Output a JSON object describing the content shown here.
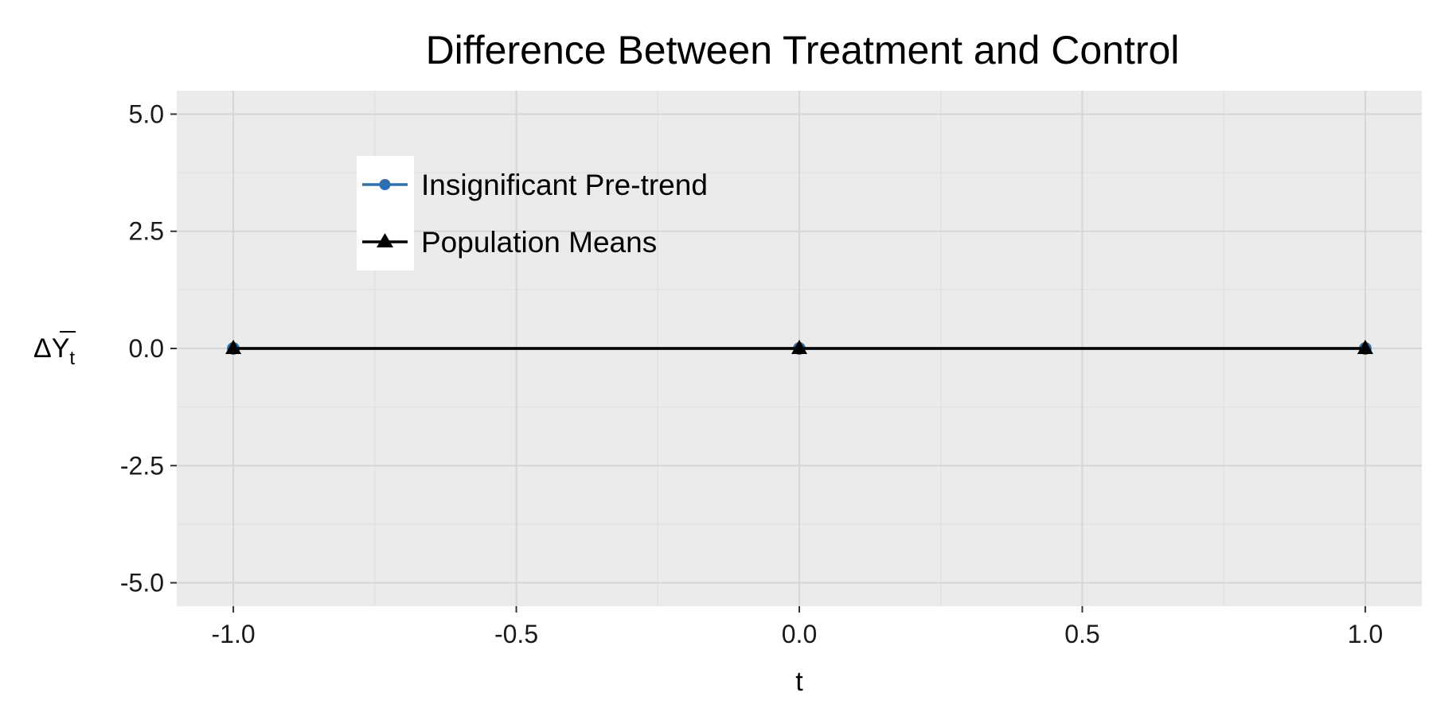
{
  "chart_data": {
    "type": "line",
    "title": "Difference Between Treatment and Control",
    "xlabel": "t",
    "ylabel": "ΔȲt",
    "ylabel_parts": {
      "main": "ΔY",
      "sub": "t"
    },
    "x": [
      -1.0,
      0.0,
      1.0
    ],
    "xlim": [
      -1.1,
      1.1
    ],
    "ylim": [
      -5.5,
      5.5
    ],
    "xticks": [
      -1.0,
      -0.5,
      0.0,
      0.5,
      1.0
    ],
    "xtick_labels": [
      "-1.0",
      "-0.5",
      "0.0",
      "0.5",
      "1.0"
    ],
    "yticks": [
      5.0,
      2.5,
      0.0,
      -2.5,
      -5.0
    ],
    "ytick_labels": [
      "5.0",
      "2.5",
      "0.0",
      "-2.5",
      "-5.0"
    ],
    "grid": true,
    "legend_position": "top-left",
    "series": [
      {
        "name": "Insignificant Pre-trend",
        "values": [
          0.0,
          0.0,
          0.0
        ],
        "color": "#2e6eb3",
        "marker": "circle"
      },
      {
        "name": "Population Means",
        "values": [
          0.0,
          0.0,
          0.0
        ],
        "color": "#000000",
        "marker": "triangle"
      }
    ],
    "colors": {
      "panel": "#ebebeb",
      "grid_major": "#d6d6d6",
      "grid_minor": "#e0e0e0",
      "legend_bg": "#ffffff"
    }
  }
}
